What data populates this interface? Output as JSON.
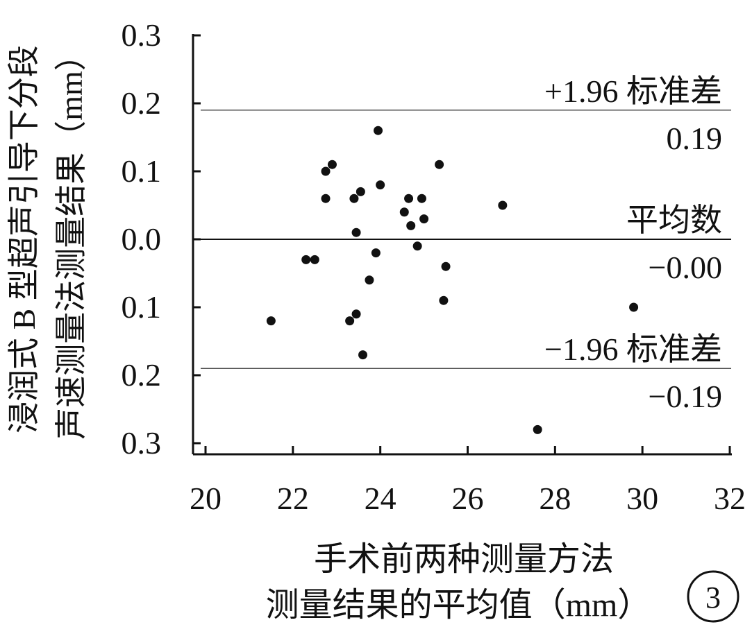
{
  "chart_data": {
    "type": "scatter",
    "xlabel_lines": [
      "手术前两种测量方法",
      "测量结果的平均值（mm）"
    ],
    "ylabel_lines": [
      "浸润式 B 型超声引导下分段",
      "声速测量法测量结果（mm）"
    ],
    "xlim": [
      20,
      32
    ],
    "ylim": [
      -0.3,
      0.3
    ],
    "x_ticks": [
      20,
      22,
      24,
      26,
      28,
      30,
      32
    ],
    "x_tick_labels": [
      "20",
      "22",
      "24",
      "26",
      "28",
      "30",
      "32"
    ],
    "y_ticks": [
      0.3,
      0.2,
      0.1,
      0.0,
      -0.1,
      -0.2,
      -0.3
    ],
    "y_tick_labels": [
      "0.3",
      "0.2",
      "0.1",
      "0.0",
      "0.1",
      "0.2",
      "0.3"
    ],
    "grid": false,
    "reference_lines": [
      {
        "y": 0.19,
        "label": "+1.96 标准差",
        "value_label": "0.19"
      },
      {
        "y": 0.0,
        "label": "平均数",
        "value_label": "−0.00"
      },
      {
        "y": -0.19,
        "label": "−1.96 标准差",
        "value_label": "−0.19"
      }
    ],
    "points": [
      {
        "x": 21.5,
        "y": -0.12
      },
      {
        "x": 22.3,
        "y": -0.03
      },
      {
        "x": 22.5,
        "y": -0.03
      },
      {
        "x": 22.75,
        "y": 0.1
      },
      {
        "x": 22.75,
        "y": 0.06
      },
      {
        "x": 22.9,
        "y": 0.11
      },
      {
        "x": 23.3,
        "y": -0.12
      },
      {
        "x": 23.4,
        "y": 0.06
      },
      {
        "x": 23.45,
        "y": 0.01
      },
      {
        "x": 23.45,
        "y": -0.11
      },
      {
        "x": 23.55,
        "y": 0.07
      },
      {
        "x": 23.6,
        "y": -0.17
      },
      {
        "x": 23.75,
        "y": -0.06
      },
      {
        "x": 23.9,
        "y": -0.02
      },
      {
        "x": 23.95,
        "y": 0.16
      },
      {
        "x": 24.0,
        "y": 0.08
      },
      {
        "x": 24.55,
        "y": 0.04
      },
      {
        "x": 24.65,
        "y": 0.06
      },
      {
        "x": 24.7,
        "y": 0.02
      },
      {
        "x": 24.85,
        "y": -0.01
      },
      {
        "x": 24.95,
        "y": 0.06
      },
      {
        "x": 25.0,
        "y": 0.03
      },
      {
        "x": 25.35,
        "y": 0.11
      },
      {
        "x": 25.45,
        "y": -0.09
      },
      {
        "x": 25.5,
        "y": -0.04
      },
      {
        "x": 26.8,
        "y": 0.05
      },
      {
        "x": 27.6,
        "y": -0.28
      },
      {
        "x": 29.8,
        "y": -0.1
      }
    ],
    "panel_label": "3"
  }
}
